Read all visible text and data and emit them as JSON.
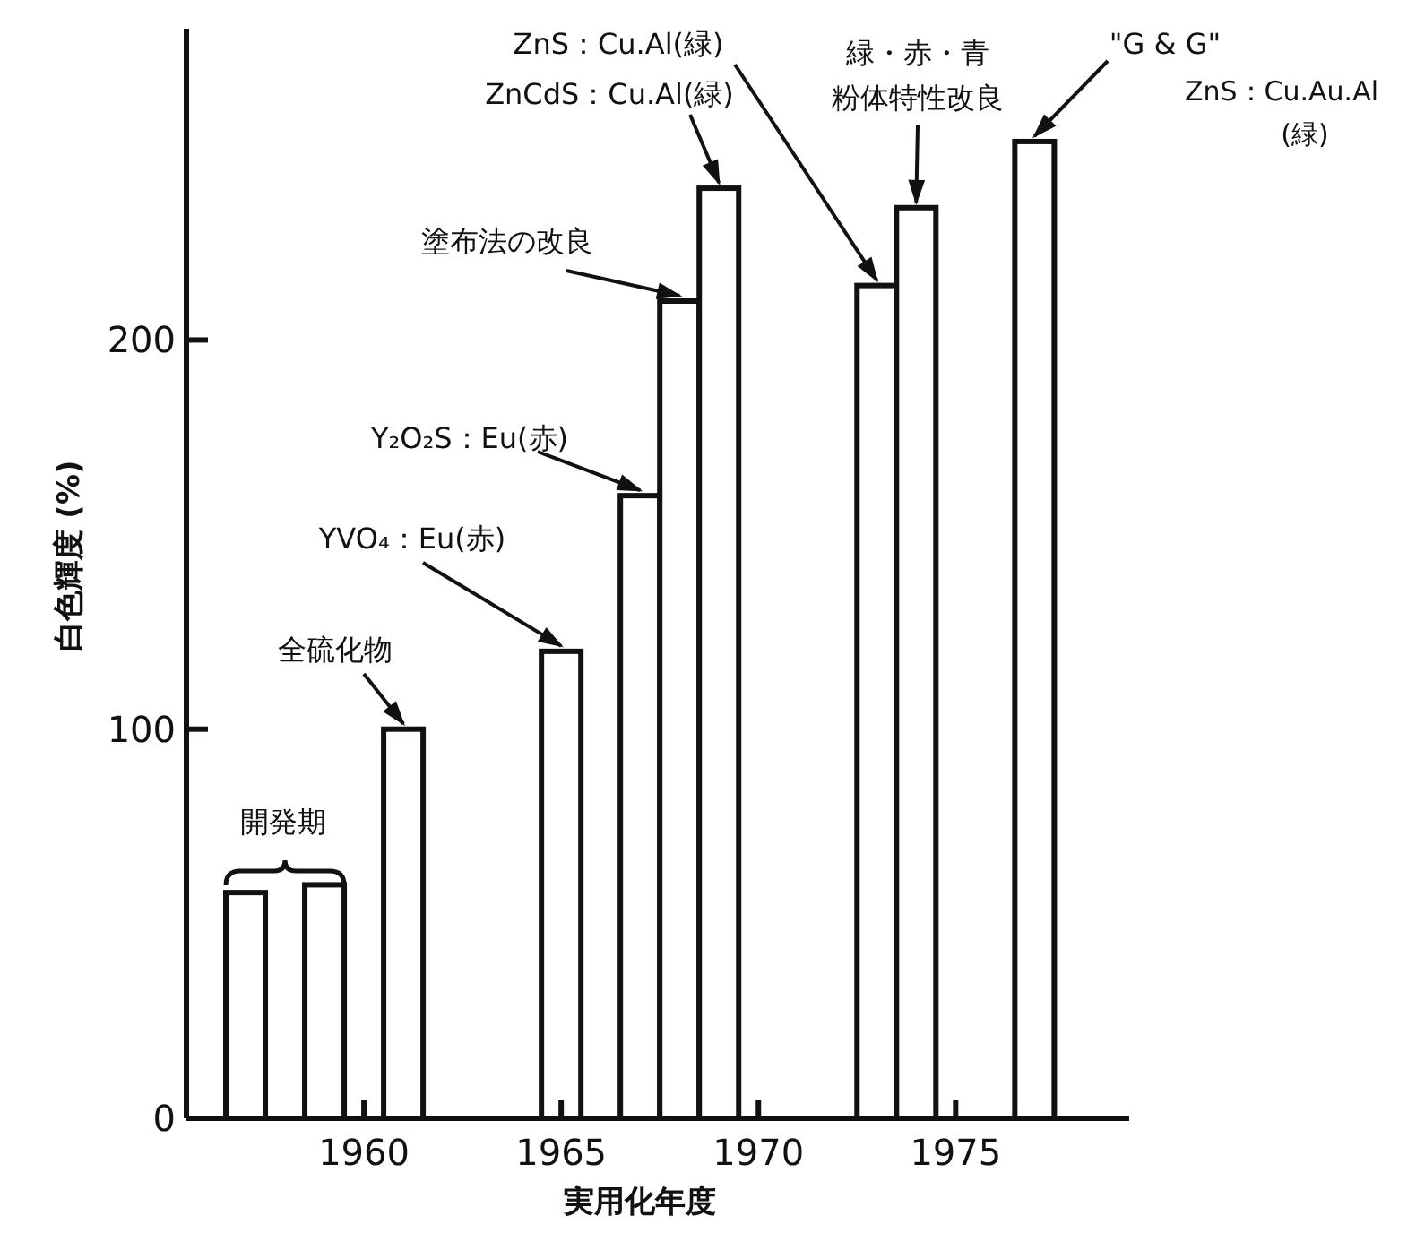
{
  "chart_data": {
    "type": "bar",
    "xlabel": "実用化年度",
    "ylabel": "白色輝度 (%)",
    "x": [
      1957,
      1959,
      1961,
      1965,
      1967,
      1968,
      1969,
      1973,
      1974,
      1977
    ],
    "values": [
      58,
      60,
      100,
      120,
      160,
      210,
      239,
      214,
      234,
      251
    ],
    "color": "#ffffff",
    "xlim": [
      1955.5,
      1979.4
    ],
    "xticks": [
      1960,
      1965,
      1970,
      1975
    ],
    "ylim": [
      0,
      280
    ],
    "yticks": [
      0,
      100,
      200
    ],
    "annotations": [
      "開発期",
      {
        "text": "全硫化物",
        "x": 1961,
        "y": 100
      },
      {
        "text": "YVO₄：Eu(赤)",
        "x": 1965,
        "y": 120
      },
      {
        "text": "Y₂O₂S：Eu(赤)",
        "x": 1967,
        "y": 160
      },
      {
        "text": "塗布法の改良",
        "x": 1968,
        "y": 210
      },
      {
        "text": "ZnCdS：Cu.Al(緑)",
        "x": 1969,
        "y": 239
      },
      {
        "text": "ZnS：Cu.Al(緑)",
        "x": 1973,
        "y": 214
      },
      "緑・赤・青",
      {
        "text": "粉体特性改良",
        "x": 1974,
        "y": 234
      },
      {
        "text": "\"G & G\"",
        "x": 1977,
        "y": 251
      },
      "ZnS：Cu.Au.Al",
      "(緑)"
    ]
  }
}
